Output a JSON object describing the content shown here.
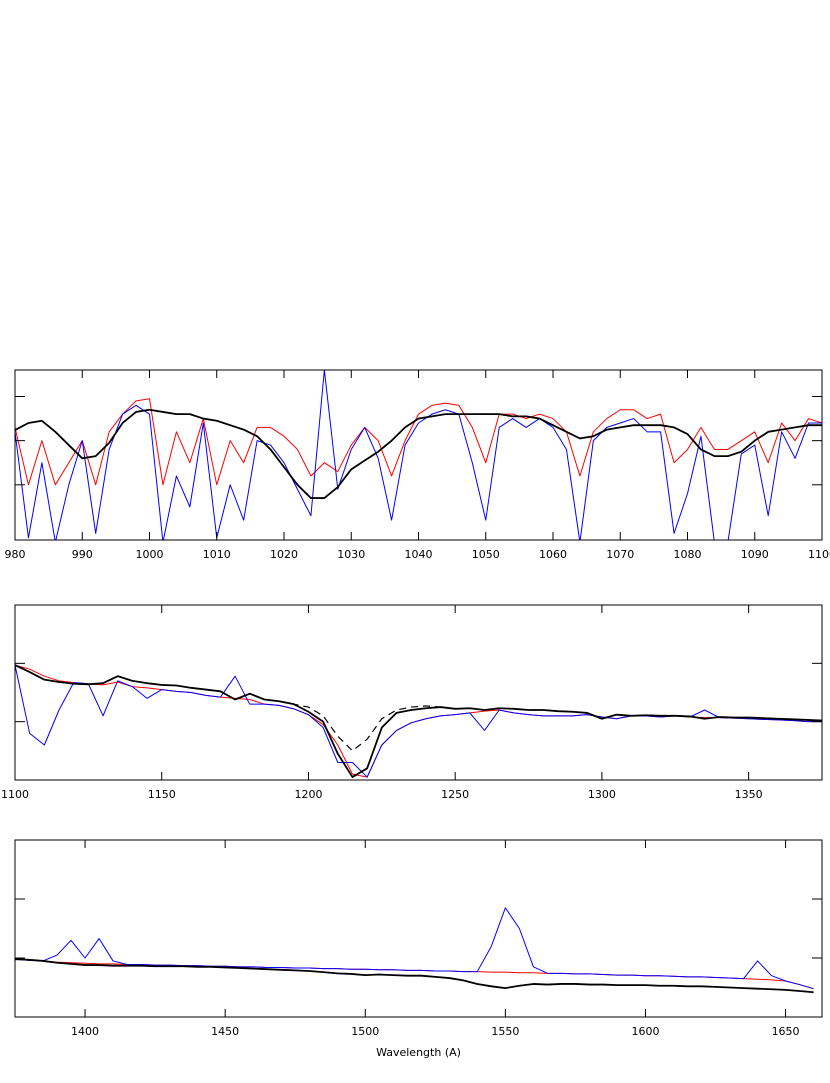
{
  "chart_data": [
    {
      "type": "line",
      "x": [
        980,
        982,
        984,
        986,
        988,
        990,
        992,
        994,
        996,
        998,
        1000,
        1002,
        1004,
        1006,
        1008,
        1010,
        1012,
        1014,
        1016,
        1018,
        1020,
        1022,
        1024,
        1026,
        1028,
        1030,
        1032,
        1034,
        1036,
        1038,
        1040,
        1042,
        1044,
        1046,
        1048,
        1050,
        1052,
        1054,
        1056,
        1058,
        1060,
        1062,
        1064,
        1066,
        1068,
        1070,
        1072,
        1074,
        1076,
        1078,
        1080,
        1082,
        1084,
        1086,
        1088,
        1090,
        1092,
        1094,
        1096,
        1098,
        1100
      ],
      "xlim": [
        980,
        1100
      ],
      "xticks": [
        980,
        990,
        1000,
        1010,
        1020,
        1030,
        1040,
        1050,
        1060,
        1070,
        1080,
        1090,
        1100
      ],
      "ylim": [
        -0.25,
        3.6
      ],
      "yticks": [
        1,
        2,
        3
      ],
      "series": [
        {
          "color": "#ff0000",
          "width": 1,
          "values": [
            2.3,
            1.0,
            2.0,
            1.0,
            1.5,
            2.0,
            1.0,
            2.2,
            2.6,
            2.9,
            2.95,
            1.0,
            2.2,
            1.5,
            2.5,
            1.0,
            2.0,
            1.5,
            2.3,
            2.3,
            2.1,
            1.8,
            1.2,
            1.5,
            1.3,
            1.9,
            2.3,
            2.0,
            1.2,
            2.0,
            2.6,
            2.8,
            2.85,
            2.8,
            2.3,
            1.5,
            2.6,
            2.6,
            2.5,
            2.6,
            2.5,
            2.2,
            1.2,
            2.2,
            2.5,
            2.7,
            2.7,
            2.5,
            2.6,
            1.5,
            1.8,
            2.3,
            1.8,
            1.8,
            2.0,
            2.2,
            1.5,
            2.4,
            2.0,
            2.5,
            2.4
          ]
        },
        {
          "color": "#0000ff",
          "width": 1,
          "values": [
            2.2,
            -0.2,
            1.5,
            -0.3,
            1.0,
            2.0,
            -0.1,
            1.8,
            2.6,
            2.8,
            2.6,
            -0.3,
            1.2,
            0.5,
            2.4,
            -0.2,
            1.0,
            0.2,
            2.0,
            1.9,
            1.5,
            0.9,
            0.3,
            3.6,
            0.9,
            1.8,
            2.3,
            1.6,
            0.2,
            1.9,
            2.4,
            2.6,
            2.7,
            2.6,
            1.5,
            0.2,
            2.3,
            2.5,
            2.3,
            2.5,
            2.3,
            1.8,
            -0.3,
            2.0,
            2.3,
            2.4,
            2.5,
            2.2,
            2.2,
            -0.1,
            0.8,
            2.1,
            -0.3,
            -0.3,
            1.7,
            1.9,
            0.3,
            2.2,
            1.6,
            2.4,
            2.4
          ]
        },
        {
          "color": "#000000",
          "width": 1.8,
          "values": [
            2.24,
            2.4,
            2.45,
            2.2,
            1.9,
            1.6,
            1.65,
            1.95,
            2.4,
            2.65,
            2.7,
            2.65,
            2.6,
            2.6,
            2.5,
            2.45,
            2.35,
            2.25,
            2.1,
            1.8,
            1.4,
            1.0,
            0.7,
            0.7,
            0.95,
            1.35,
            1.55,
            1.75,
            2.0,
            2.3,
            2.5,
            2.55,
            2.6,
            2.6,
            2.6,
            2.6,
            2.6,
            2.55,
            2.55,
            2.5,
            2.35,
            2.2,
            2.05,
            2.1,
            2.25,
            2.3,
            2.35,
            2.35,
            2.35,
            2.3,
            2.15,
            1.8,
            1.65,
            1.65,
            1.75,
            2.0,
            2.2,
            2.25,
            2.3,
            2.35,
            2.35
          ]
        }
      ]
    },
    {
      "type": "line",
      "x": [
        1100,
        1105,
        1110,
        1115,
        1120,
        1125,
        1130,
        1135,
        1140,
        1145,
        1150,
        1155,
        1160,
        1165,
        1170,
        1175,
        1180,
        1185,
        1190,
        1195,
        1200,
        1205,
        1210,
        1215,
        1220,
        1225,
        1230,
        1235,
        1240,
        1245,
        1250,
        1255,
        1260,
        1265,
        1270,
        1275,
        1280,
        1285,
        1290,
        1295,
        1300,
        1305,
        1310,
        1315,
        1320,
        1325,
        1330,
        1335,
        1340,
        1345,
        1350,
        1355,
        1360,
        1365,
        1370,
        1375
      ],
      "xlim": [
        1100,
        1375
      ],
      "xticks": [
        1100,
        1150,
        1200,
        1250,
        1300,
        1350
      ],
      "ylim": [
        0,
        3
      ],
      "yticks": [
        1,
        2
      ],
      "series": [
        {
          "color": "#ff0000",
          "width": 1,
          "values": [
            1.97,
            1.9,
            1.78,
            1.7,
            1.67,
            1.65,
            1.63,
            1.68,
            1.6,
            1.58,
            1.55,
            1.52,
            1.5,
            1.45,
            1.42,
            1.4,
            1.38,
            1.3,
            1.28,
            1.22,
            1.12,
            0.95,
            0.6,
            0.1,
            0.05,
            0.6,
            0.85,
            0.98,
            1.05,
            1.1,
            1.12,
            1.15,
            1.18,
            1.2,
            1.15,
            1.12,
            1.1,
            1.1,
            1.1,
            1.12,
            1.08,
            1.05,
            1.1,
            1.1,
            1.08,
            1.1,
            1.08,
            1.07,
            1.07,
            1.06,
            1.05,
            1.04,
            1.03,
            1.02,
            1.0,
            1.0
          ]
        },
        {
          "color": "#0000ff",
          "width": 1,
          "values": [
            1.97,
            0.8,
            0.6,
            1.2,
            1.67,
            1.65,
            1.1,
            1.7,
            1.6,
            1.4,
            1.55,
            1.52,
            1.5,
            1.45,
            1.42,
            1.78,
            1.3,
            1.3,
            1.28,
            1.22,
            1.12,
            0.9,
            0.3,
            0.3,
            0.05,
            0.6,
            0.85,
            0.98,
            1.05,
            1.1,
            1.12,
            1.15,
            0.85,
            1.2,
            1.15,
            1.12,
            1.1,
            1.1,
            1.1,
            1.12,
            1.08,
            1.05,
            1.1,
            1.1,
            1.08,
            1.1,
            1.08,
            1.2,
            1.07,
            1.06,
            1.05,
            1.04,
            1.03,
            1.02,
            1.0,
            1.0
          ]
        },
        {
          "color": "#000000",
          "width": 1.2,
          "dashed": true,
          "values": [
            1.97,
            1.85,
            1.72,
            1.68,
            1.65,
            1.64,
            1.66,
            1.78,
            1.7,
            1.66,
            1.63,
            1.62,
            1.58,
            1.55,
            1.52,
            1.38,
            1.48,
            1.38,
            1.35,
            1.3,
            1.25,
            1.1,
            0.75,
            0.5,
            0.7,
            1.05,
            1.2,
            1.25,
            1.27,
            1.25,
            1.22,
            1.23,
            1.2,
            1.23,
            1.22,
            1.2,
            1.2,
            1.18,
            1.17,
            1.15,
            1.05,
            1.12,
            1.1,
            1.11,
            1.1,
            1.1,
            1.09,
            1.05,
            1.08,
            1.07,
            1.07,
            1.06,
            1.05,
            1.04,
            1.03,
            1.02
          ]
        },
        {
          "color": "#000000",
          "width": 1.8,
          "values": [
            1.97,
            1.85,
            1.72,
            1.68,
            1.65,
            1.64,
            1.66,
            1.78,
            1.7,
            1.66,
            1.63,
            1.62,
            1.58,
            1.55,
            1.52,
            1.38,
            1.48,
            1.38,
            1.35,
            1.3,
            1.17,
            1.0,
            0.45,
            0.05,
            0.2,
            0.9,
            1.15,
            1.2,
            1.23,
            1.25,
            1.22,
            1.23,
            1.2,
            1.23,
            1.22,
            1.2,
            1.2,
            1.18,
            1.17,
            1.15,
            1.05,
            1.12,
            1.1,
            1.11,
            1.1,
            1.1,
            1.09,
            1.05,
            1.08,
            1.07,
            1.07,
            1.06,
            1.05,
            1.04,
            1.03,
            1.02
          ]
        }
      ]
    },
    {
      "type": "line",
      "x": [
        1375,
        1380,
        1385,
        1390,
        1395,
        1400,
        1405,
        1410,
        1415,
        1420,
        1425,
        1430,
        1435,
        1440,
        1445,
        1450,
        1455,
        1460,
        1465,
        1470,
        1475,
        1480,
        1485,
        1490,
        1495,
        1500,
        1505,
        1510,
        1515,
        1520,
        1525,
        1530,
        1535,
        1540,
        1545,
        1550,
        1555,
        1560,
        1565,
        1570,
        1575,
        1580,
        1585,
        1590,
        1595,
        1600,
        1605,
        1610,
        1615,
        1620,
        1625,
        1630,
        1635,
        1640,
        1645,
        1650,
        1655,
        1660
      ],
      "xlim": [
        1375,
        1663
      ],
      "xticks": [
        1400,
        1450,
        1500,
        1550,
        1600,
        1650
      ],
      "xlabel": "Wavelength (A)",
      "ylim": [
        0,
        3
      ],
      "yticks": [
        1,
        2
      ],
      "series": [
        {
          "color": "#ff0000",
          "width": 1,
          "values": [
            0.98,
            0.96,
            0.95,
            0.93,
            0.92,
            0.91,
            0.9,
            0.9,
            0.89,
            0.89,
            0.88,
            0.88,
            0.87,
            0.87,
            0.86,
            0.86,
            0.85,
            0.85,
            0.84,
            0.84,
            0.83,
            0.83,
            0.82,
            0.82,
            0.81,
            0.81,
            0.8,
            0.8,
            0.79,
            0.79,
            0.78,
            0.78,
            0.77,
            0.77,
            0.76,
            0.76,
            0.75,
            0.75,
            0.74,
            0.74,
            0.73,
            0.73,
            0.72,
            0.71,
            0.71,
            0.7,
            0.7,
            0.69,
            0.68,
            0.68,
            0.67,
            0.66,
            0.65,
            0.64,
            0.63,
            0.61,
            0.55,
            0.48
          ]
        },
        {
          "color": "#0000ff",
          "width": 1,
          "values": [
            0.98,
            0.96,
            0.95,
            1.05,
            1.3,
            1.0,
            1.33,
            0.95,
            0.89,
            0.89,
            0.88,
            0.88,
            0.87,
            0.87,
            0.86,
            0.86,
            0.85,
            0.85,
            0.84,
            0.84,
            0.83,
            0.83,
            0.82,
            0.82,
            0.81,
            0.81,
            0.8,
            0.8,
            0.79,
            0.79,
            0.78,
            0.78,
            0.77,
            0.77,
            1.2,
            1.85,
            1.5,
            0.85,
            0.74,
            0.74,
            0.73,
            0.73,
            0.72,
            0.71,
            0.71,
            0.7,
            0.7,
            0.69,
            0.68,
            0.68,
            0.67,
            0.66,
            0.65,
            0.95,
            0.7,
            0.61,
            0.55,
            0.48
          ]
        },
        {
          "color": "#000000",
          "width": 1.8,
          "values": [
            0.98,
            0.97,
            0.95,
            0.92,
            0.9,
            0.88,
            0.88,
            0.87,
            0.87,
            0.87,
            0.86,
            0.86,
            0.86,
            0.85,
            0.85,
            0.84,
            0.83,
            0.82,
            0.81,
            0.8,
            0.79,
            0.78,
            0.76,
            0.74,
            0.73,
            0.71,
            0.72,
            0.71,
            0.7,
            0.7,
            0.68,
            0.66,
            0.62,
            0.56,
            0.52,
            0.49,
            0.53,
            0.56,
            0.55,
            0.56,
            0.56,
            0.55,
            0.55,
            0.54,
            0.54,
            0.54,
            0.53,
            0.53,
            0.52,
            0.52,
            0.51,
            0.5,
            0.49,
            0.48,
            0.47,
            0.46,
            0.44,
            0.42
          ]
        }
      ]
    }
  ]
}
